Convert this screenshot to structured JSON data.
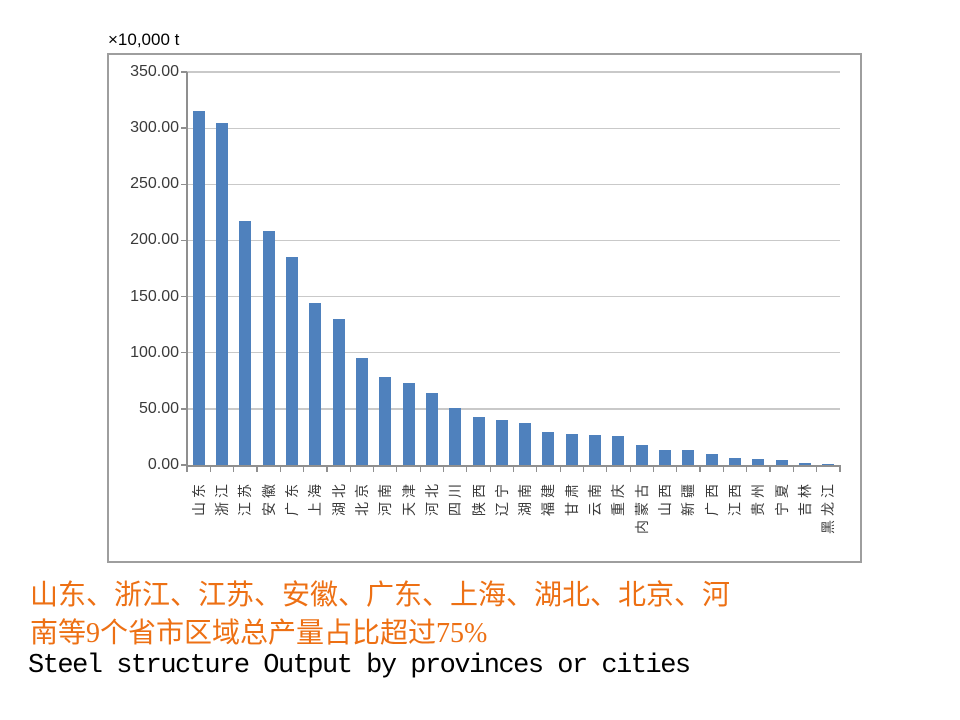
{
  "chart_data": {
    "type": "bar",
    "title": "",
    "unit": "×10,000 t",
    "categories": [
      "山东",
      "浙江",
      "江苏",
      "安徽",
      "广东",
      "上海",
      "湖北",
      "北京",
      "河南",
      "天津",
      "河北",
      "四川",
      "陕西",
      "辽宁",
      "湖南",
      "福建",
      "甘肃",
      "云南",
      "重庆",
      "内蒙古",
      "山西",
      "新疆",
      "广西",
      "江西",
      "贵州",
      "宁夏",
      "吉林",
      "黑龙江"
    ],
    "values": [
      315,
      305,
      217,
      208,
      185,
      144,
      130,
      95,
      78,
      73,
      64,
      51,
      43,
      40,
      37,
      29,
      28,
      27,
      26,
      18,
      13,
      13,
      10,
      6.5,
      5.5,
      4.5,
      1.5,
      0.8
    ],
    "xlabel": "",
    "ylabel": "",
    "ylim": [
      0,
      350
    ],
    "ytick_interval": 50,
    "ytick_labels": [
      "350.00",
      "300.00",
      "250.00",
      "200.00",
      "150.00",
      "100.00",
      "50.00",
      "0.00"
    ],
    "grid": true,
    "legend": false,
    "bar_color": "#4f81bd",
    "gridline_color": "#c9c9c9",
    "axis_color": "#8f8f8f",
    "tick_label_color": "#3a3a3a"
  },
  "captions": {
    "highlight_line1": "山东、浙江、江苏、安徽、广东、上海、湖北、北京、河",
    "highlight_line2": "南等9个省市区域总产量占比超过75%",
    "highlight_color": "#ed7014",
    "title_en": "Steel structure Output by provinces or cities"
  }
}
